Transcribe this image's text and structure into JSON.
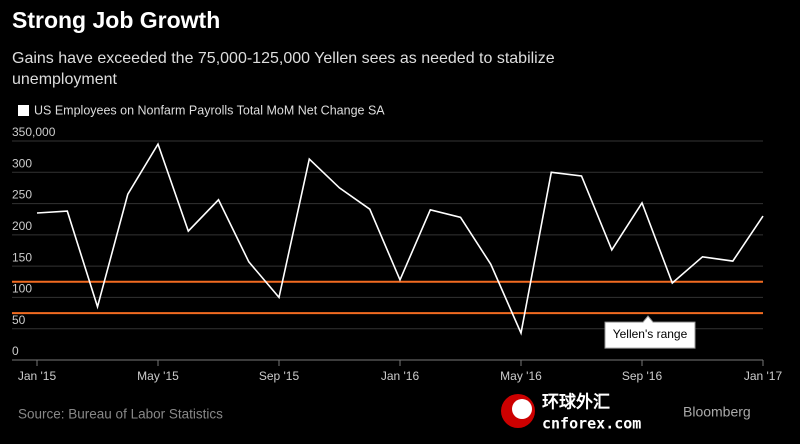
{
  "chart_data": {
    "type": "line",
    "title": "Strong Job Growth",
    "subtitle": "Gains have exceeded the 75,000-125,000 Yellen sees as needed to stabilize unemployment",
    "x": [
      "2015-01",
      "2015-02",
      "2015-03",
      "2015-04",
      "2015-05",
      "2015-06",
      "2015-07",
      "2015-08",
      "2015-09",
      "2015-10",
      "2015-11",
      "2015-12",
      "2016-01",
      "2016-02",
      "2016-03",
      "2016-04",
      "2016-05",
      "2016-06",
      "2016-07",
      "2016-08",
      "2016-09",
      "2016-10",
      "2016-11",
      "2016-12",
      "2017-01"
    ],
    "series": [
      {
        "name": "US Employees on Nonfarm Payrolls Total MoM Net Change SA",
        "color": "#ffffff",
        "values": [
          235,
          238,
          85,
          265,
          345,
          206,
          256,
          157,
          100,
          321,
          275,
          241,
          128,
          240,
          228,
          153,
          43,
          300,
          294,
          176,
          251,
          123,
          165,
          158,
          230
        ]
      }
    ],
    "xlim": [
      "2015-01",
      "2017-01"
    ],
    "xticks": [
      {
        "value": "2015-01",
        "label": "Jan '15"
      },
      {
        "value": "2015-05",
        "label": "May '15"
      },
      {
        "value": "2015-09",
        "label": "Sep '15"
      },
      {
        "value": "2016-01",
        "label": "Jan '16"
      },
      {
        "value": "2016-05",
        "label": "May '16"
      },
      {
        "value": "2016-09",
        "label": "Sep '16"
      },
      {
        "value": "2017-01",
        "label": "Jan '17"
      }
    ],
    "ylim": [
      0,
      350
    ],
    "yticks": [
      0,
      50,
      100,
      150,
      200,
      250,
      300,
      {
        "value": 350,
        "label": "350,000"
      }
    ],
    "grid": true,
    "reference_lines": [
      {
        "value": 125,
        "color": "#f26b21"
      },
      {
        "value": 75,
        "color": "#f26b21"
      }
    ],
    "annotation": "Yellen's range",
    "source": "Source: Bureau of Labor Statistics",
    "brand": "Bloomberg",
    "watermark": [
      "环球外汇",
      "cnforex.com"
    ]
  }
}
